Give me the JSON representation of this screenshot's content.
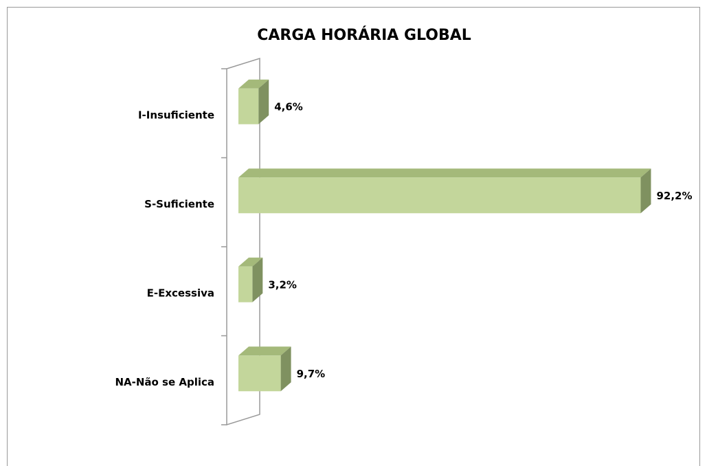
{
  "chart_data": {
    "type": "bar",
    "orientation": "horizontal",
    "title": "CARGA HORÁRIA GLOBAL",
    "categories": [
      "I-Insuficiente",
      "S-Suficiente",
      "E-Excessiva",
      "NA-Não se Aplica"
    ],
    "values": [
      4.6,
      92.2,
      3.2,
      9.7
    ],
    "value_labels": [
      "4,6%",
      "92,2%",
      "3,2%",
      "9,7%"
    ],
    "color": "#c3d69b"
  }
}
